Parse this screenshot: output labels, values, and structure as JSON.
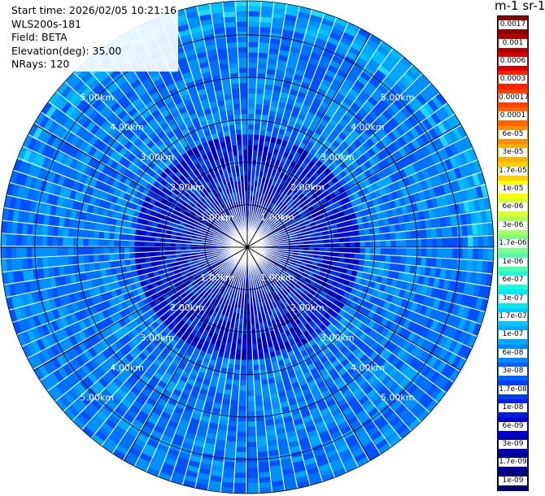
{
  "info": {
    "start_time": "Start time: 2026/02/05 10:21:16",
    "instrument": "WLS200s-181",
    "field": "Field: BETA",
    "elevation": "Elevation(deg): 35.00",
    "nrays": "NRays: 120"
  },
  "colorbar": {
    "title": "m-1 sr-1",
    "labels": [
      "0.0017",
      "0.001",
      "0.0006",
      "0.0003",
      "0.00017",
      "0.0001",
      "6e-05",
      "3e-05",
      "1.7e-05",
      "1e-05",
      "6e-06",
      "3e-06",
      "1.7e-06",
      "1e-06",
      "6e-07",
      "3e-07",
      "1.7e-07",
      "1e-07",
      "6e-08",
      "3e-08",
      "1.7e-08",
      "1e-08",
      "6e-09",
      "3e-09",
      "1.7e-09",
      "1e-09"
    ],
    "colors": [
      "#8b0000",
      "#b00000",
      "#d80000",
      "#ff2000",
      "#ff4000",
      "#ff6600",
      "#ff8c00",
      "#ffb000",
      "#ffd000",
      "#ffff00",
      "#d8ff30",
      "#a8ff60",
      "#78ff88",
      "#48ffb0",
      "#20f8d8",
      "#00e8f0",
      "#00c8ff",
      "#00a8ff",
      "#0088ff",
      "#0060ff",
      "#0040f0",
      "#0020e0",
      "#0000d0",
      "#0000b0",
      "#000090",
      "#000070"
    ]
  },
  "range_rings": {
    "labels": [
      "1.00km",
      "2.00km",
      "3.00km",
      "4.00km",
      "5.00km"
    ]
  },
  "chart_data": {
    "type": "heatmap",
    "projection": "polar-ppi",
    "field": "BETA",
    "units": "m-1 sr-1",
    "n_rays": 120,
    "elevation_deg": 35.0,
    "range_rings_km": [
      1,
      2,
      3,
      4,
      5
    ],
    "max_range_km": 5.8,
    "color_scale": "log",
    "value_range": [
      1e-09,
      0.0017
    ]
  }
}
